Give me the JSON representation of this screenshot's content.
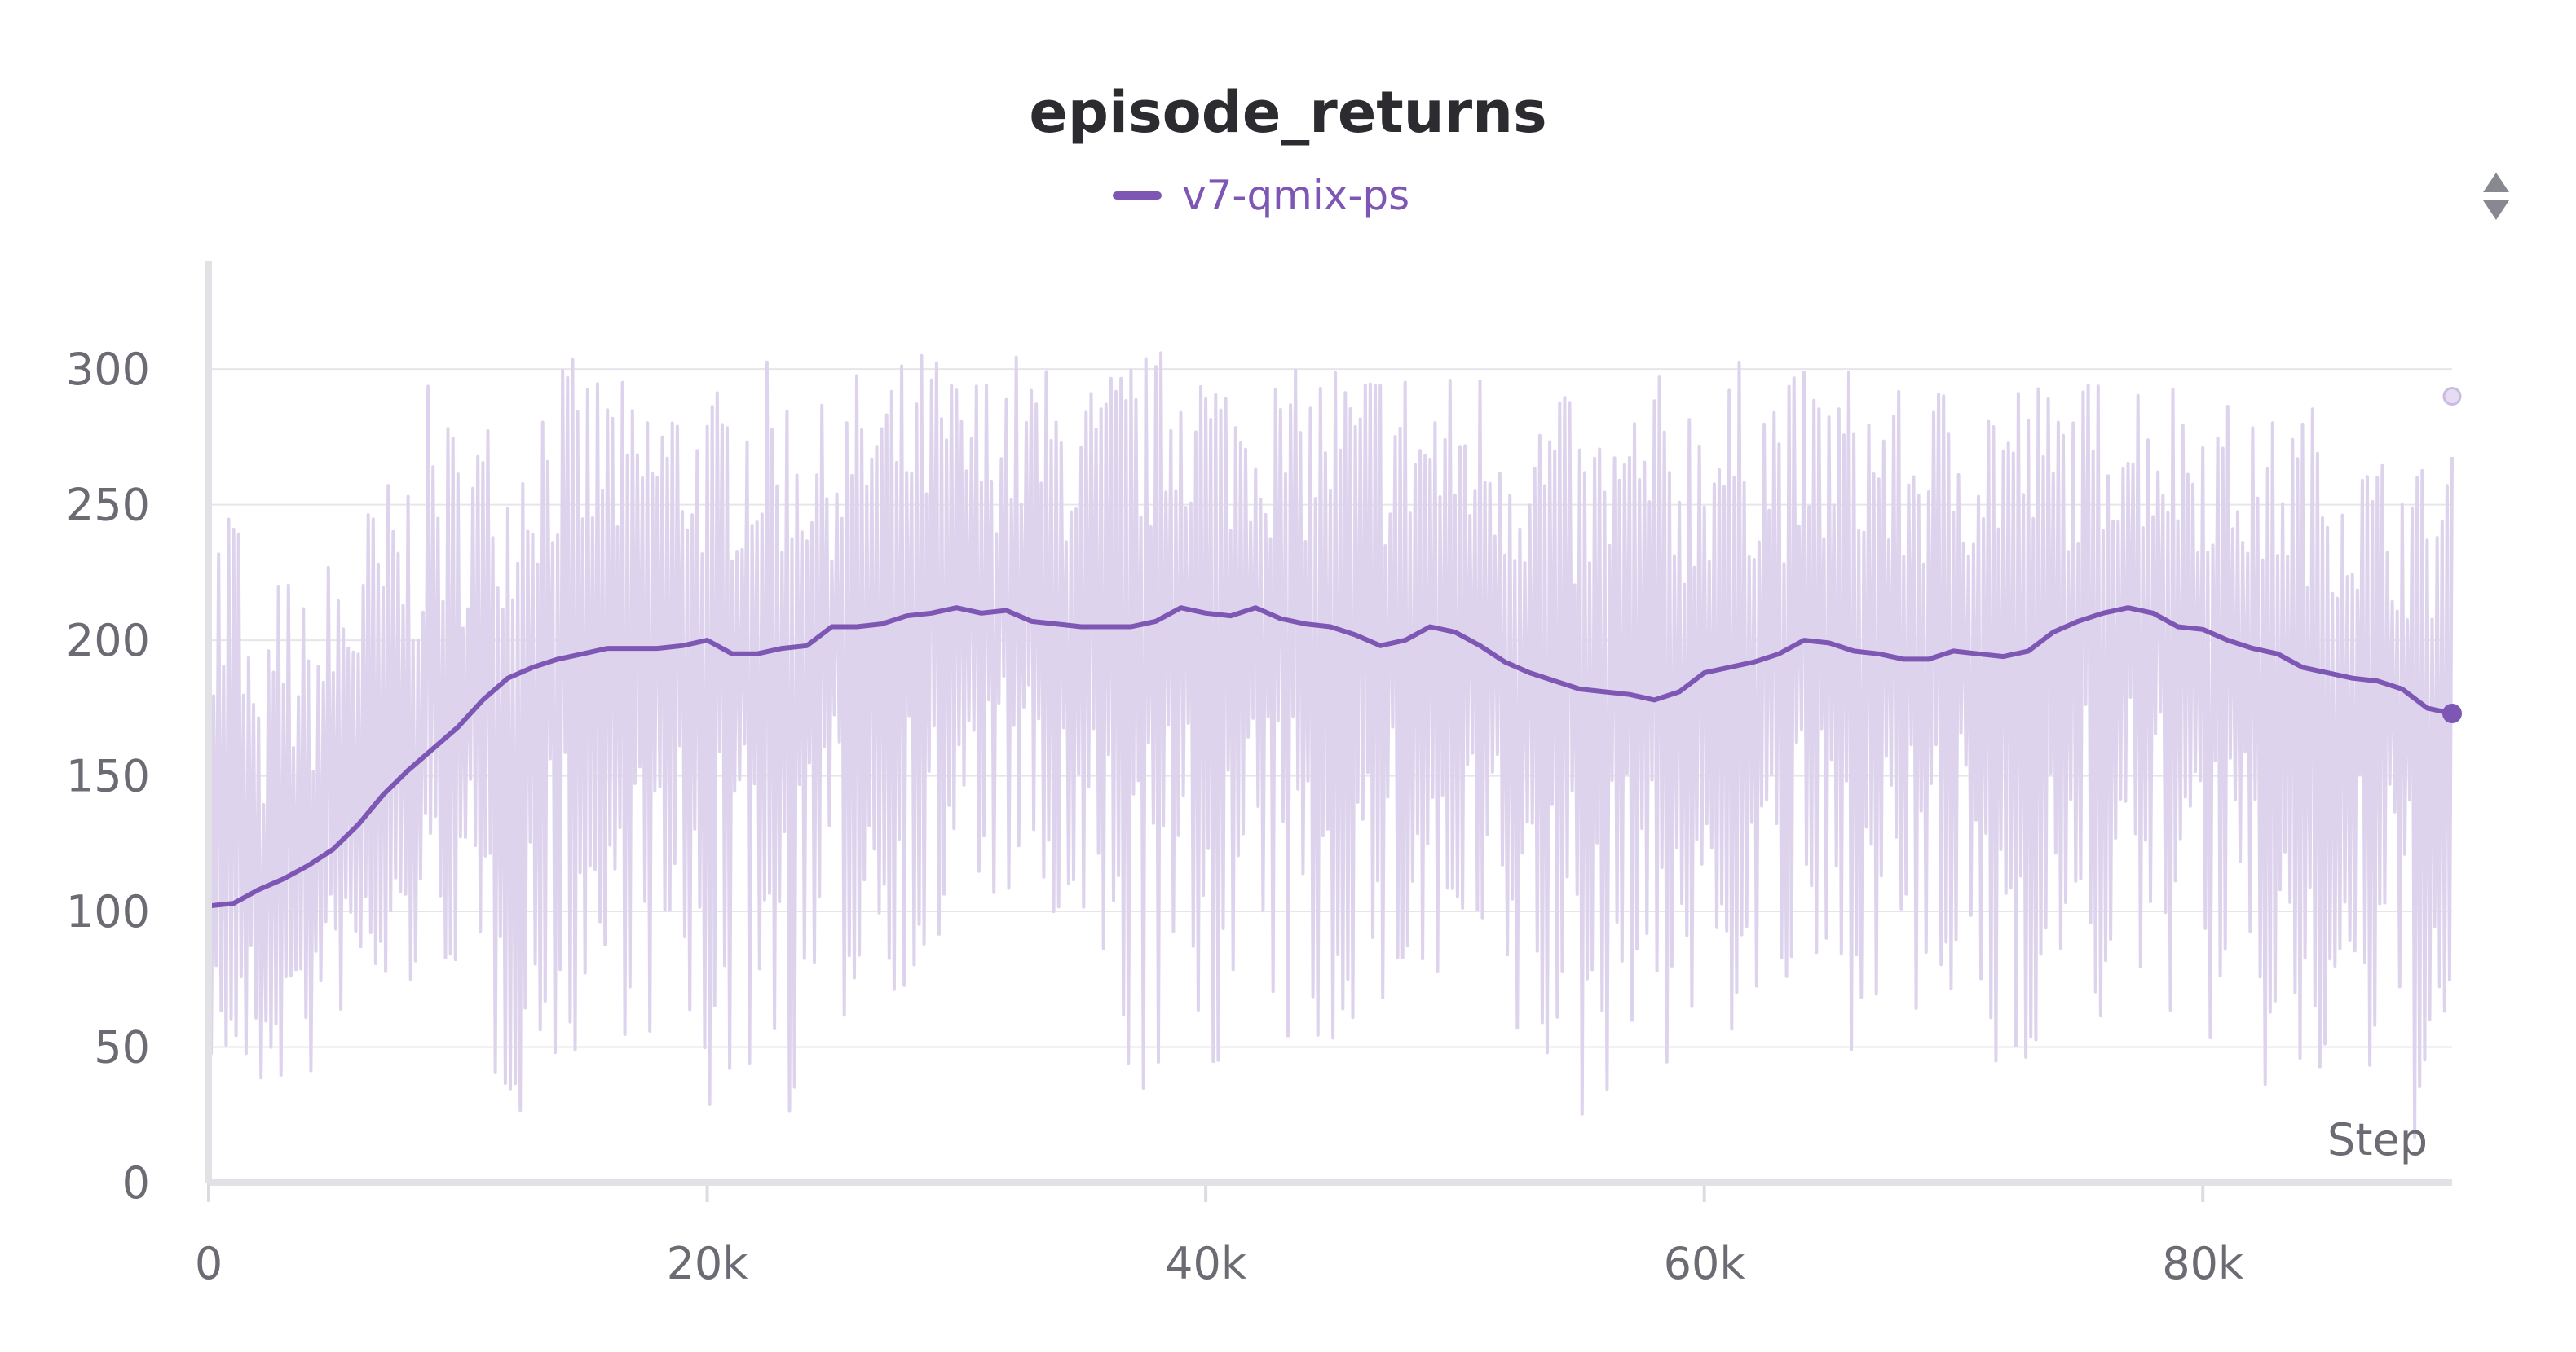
{
  "chart_data": {
    "type": "line",
    "title": "episode_returns",
    "xlabel": "Step",
    "ylabel": "",
    "xlim": [
      0,
      90000
    ],
    "ylim": [
      0,
      340
    ],
    "xticks": [
      0,
      20000,
      40000,
      60000,
      80000
    ],
    "xtick_labels": [
      "0",
      "20k",
      "40k",
      "60k",
      "80k"
    ],
    "yticks": [
      0,
      50,
      100,
      150,
      200,
      250,
      300
    ],
    "ytick_labels": [
      "0",
      "50",
      "100",
      "150",
      "200",
      "250",
      "300"
    ],
    "grid": true,
    "legend": "top-center",
    "series": [
      {
        "name": "v7-qmix-ps",
        "color": "#7e57b5",
        "raw_color": "#ddd3ec",
        "x": [
          0,
          1000,
          2000,
          3000,
          4000,
          5000,
          6000,
          7000,
          8000,
          9000,
          10000,
          11000,
          12000,
          13000,
          14000,
          15000,
          16000,
          17000,
          18000,
          19000,
          20000,
          21000,
          22000,
          23000,
          24000,
          25000,
          26000,
          27000,
          28000,
          29000,
          30000,
          31000,
          32000,
          33000,
          34000,
          35000,
          36000,
          37000,
          38000,
          39000,
          40000,
          41000,
          42000,
          43000,
          44000,
          45000,
          46000,
          47000,
          48000,
          49000,
          50000,
          51000,
          52000,
          53000,
          54000,
          55000,
          56000,
          57000,
          58000,
          59000,
          60000,
          61000,
          62000,
          63000,
          64000,
          65000,
          66000,
          67000,
          68000,
          69000,
          70000,
          71000,
          72000,
          73000,
          74000,
          75000,
          76000,
          77000,
          78000,
          79000,
          80000,
          81000,
          82000,
          83000,
          84000,
          85000,
          86000,
          87000,
          88000,
          89000,
          90000
        ],
        "smoothed": [
          102,
          103,
          108,
          112,
          117,
          123,
          132,
          143,
          152,
          160,
          168,
          178,
          186,
          190,
          193,
          195,
          197,
          197,
          197,
          198,
          200,
          195,
          195,
          197,
          198,
          205,
          205,
          206,
          209,
          210,
          212,
          210,
          211,
          207,
          206,
          205,
          205,
          205,
          207,
          212,
          210,
          209,
          212,
          208,
          206,
          205,
          202,
          198,
          200,
          205,
          203,
          198,
          192,
          188,
          185,
          182,
          181,
          180,
          178,
          181,
          188,
          190,
          192,
          195,
          200,
          199,
          196,
          195,
          193,
          193,
          196,
          195,
          194,
          196,
          203,
          207,
          210,
          212,
          210,
          205,
          204,
          200,
          197,
          195,
          190,
          188,
          186,
          185,
          182,
          175,
          173
        ],
        "raw_low": [
          45,
          35,
          25,
          35,
          30,
          60,
          60,
          55,
          65,
          80,
          75,
          30,
          25,
          20,
          40,
          45,
          40,
          60,
          45,
          30,
          15,
          30,
          40,
          20,
          30,
          45,
          60,
          70,
          70,
          60,
          90,
          100,
          100,
          95,
          75,
          60,
          40,
          30,
          25,
          30,
          40,
          40,
          60,
          45,
          35,
          35,
          60,
          45,
          70,
          45,
          60,
          60,
          40,
          35,
          30,
          10,
          25,
          60,
          40,
          35,
          60,
          50,
          55,
          55,
          60,
          40,
          50,
          70,
          45,
          40,
          55,
          30,
          25,
          45,
          55,
          60,
          50,
          55,
          60,
          60,
          55,
          25,
          25,
          25,
          20,
          20,
          25,
          25,
          15,
          10,
          10
        ],
        "raw_high": [
          250,
          280,
          175,
          240,
          210,
          240,
          250,
          260,
          270,
          300,
          280,
          290,
          270,
          300,
          310,
          300,
          305,
          290,
          300,
          295,
          290,
          300,
          305,
          300,
          290,
          285,
          300,
          300,
          305,
          310,
          300,
          300,
          310,
          305,
          300,
          295,
          300,
          310,
          305,
          325,
          310,
          300,
          305,
          300,
          300,
          310,
          300,
          310,
          305,
          300,
          300,
          305,
          300,
          290,
          300,
          280,
          285,
          290,
          300,
          295,
          305,
          300,
          310,
          300,
          300,
          300,
          305,
          300,
          290,
          295,
          300,
          300,
          305,
          300,
          295,
          295,
          300,
          305,
          300,
          300,
          295,
          290,
          280,
          285,
          290,
          285,
          275,
          270,
          270,
          265,
          290
        ]
      }
    ]
  }
}
